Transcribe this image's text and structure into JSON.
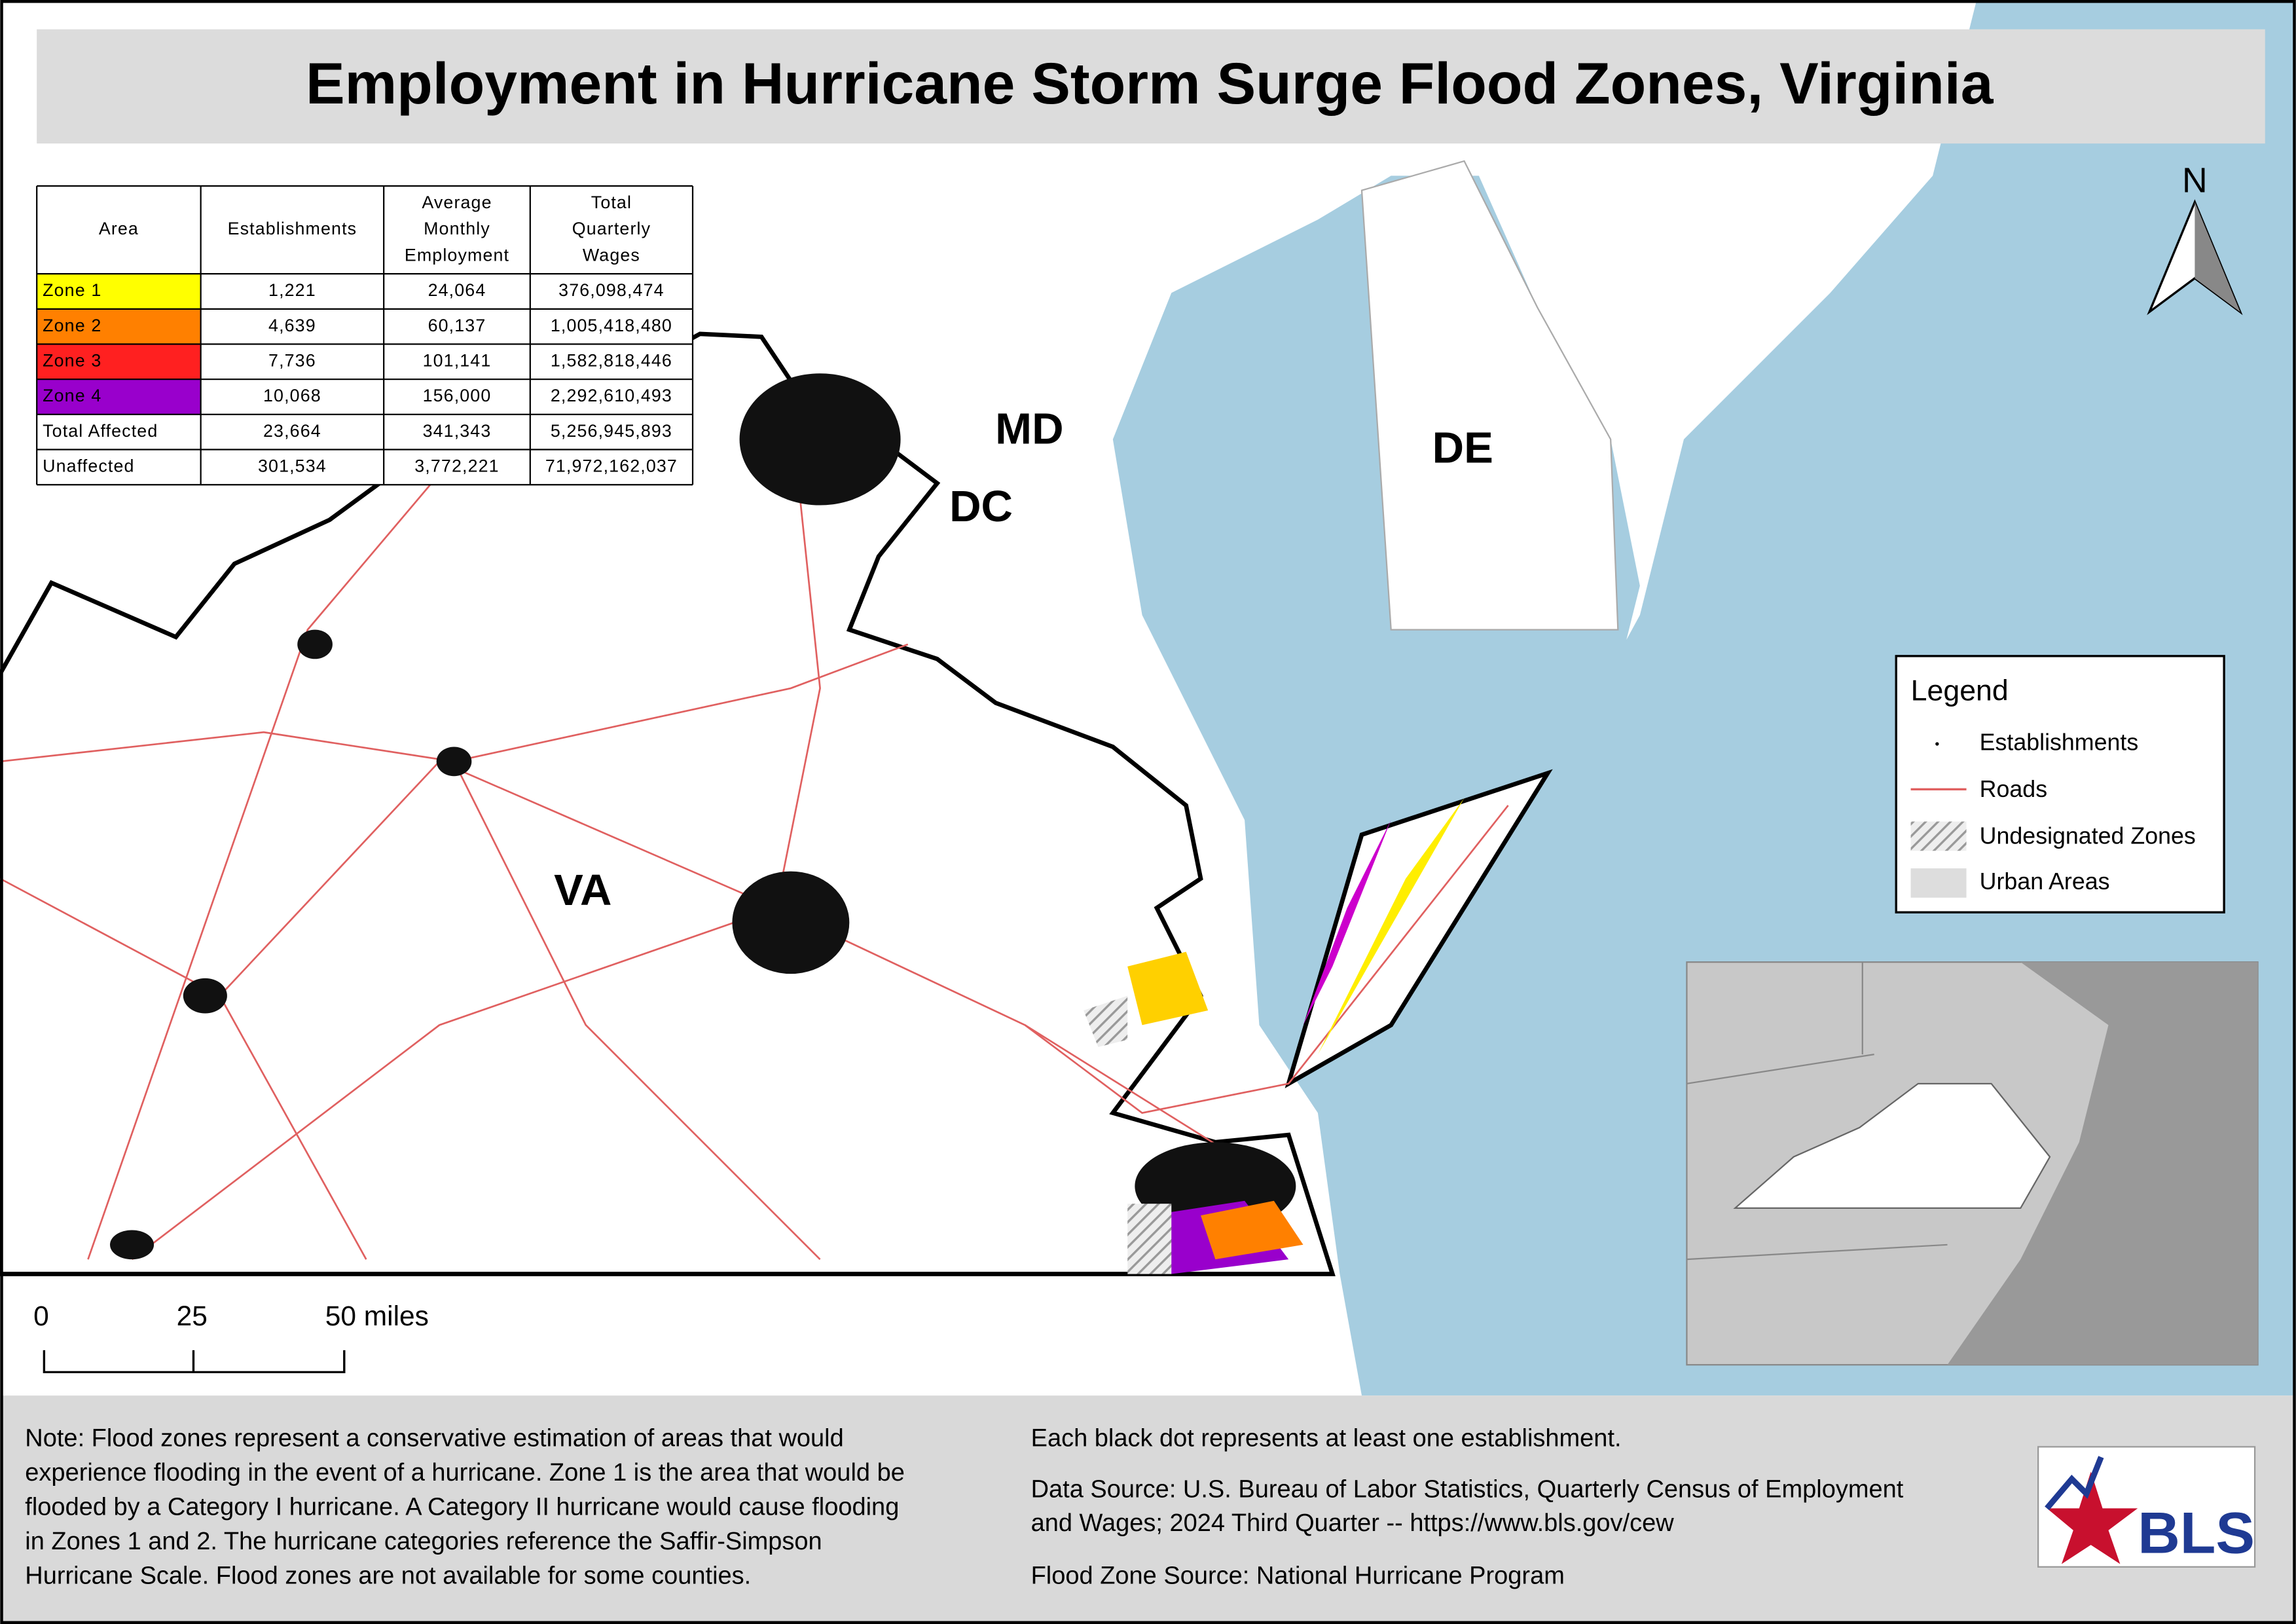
{
  "header": {
    "title": "Employment in Hurricane Storm Surge Flood Zones, Virginia"
  },
  "table": {
    "columns": [
      [
        "Area"
      ],
      [
        "Establishments"
      ],
      [
        "Average",
        "Monthly",
        "Employment"
      ],
      [
        "Total",
        "Quarterly",
        "Wages"
      ]
    ],
    "rows": [
      [
        "Zone 1",
        "1,221",
        "24,064",
        "376,098,474"
      ],
      [
        "Zone 2",
        "4,639",
        "60,137",
        "1,005,418,480"
      ],
      [
        "Zone 3",
        "7,736",
        "101,141",
        "1,582,818,446"
      ],
      [
        "Zone 4",
        "10,068",
        "156,000",
        "2,292,610,493"
      ],
      [
        "Total Affected",
        "23,664",
        "341,343",
        "5,256,945,893"
      ],
      [
        "Unaffected",
        "301,534",
        "3,772,221",
        "71,972,162,037"
      ]
    ]
  },
  "map": {
    "state_labels": [
      "MD",
      "DC",
      "DE",
      "VA"
    ],
    "north": "N"
  },
  "legend": {
    "title": "Legend",
    "items": [
      "Establishments",
      "Roads",
      "Undesignated Zones",
      "Urban Areas"
    ]
  },
  "scale_bar": {
    "labels": [
      "0",
      "25",
      "50 miles"
    ]
  },
  "notes": {
    "left": [
      "Note: Flood zones represent a conservative estimation of areas that would",
      "experience flooding in the event of a hurricane. Zone 1 is the area that would be",
      "flooded by a Category I hurricane. A Category II hurricane would cause flooding",
      "in Zones 1 and 2. The hurricane categories reference the Saffir-Simpson",
      "Hurricane Scale. Flood zones are not available for some counties."
    ],
    "right": [
      "Each black dot represents at least one establishment.",
      "Data Source: U.S. Bureau of Labor Statistics, Quarterly Census of Employment",
      "and Wages; 2024 Third Quarter -- https://www.bls.gov/cew",
      "Flood Zone Source: National Hurricane Program"
    ]
  },
  "logo": {
    "text": "BLS"
  }
}
